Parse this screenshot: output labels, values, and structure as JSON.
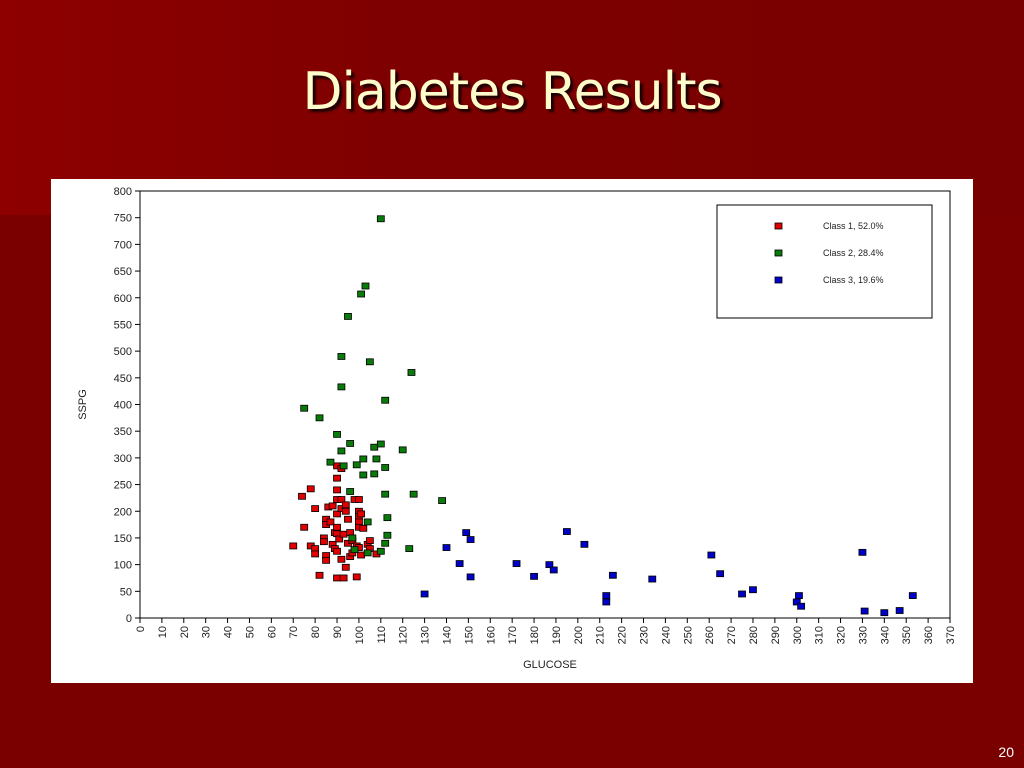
{
  "slide": {
    "title": "Diabetes Results",
    "page_number": "20"
  },
  "chart_data": {
    "type": "scatter",
    "xlabel": "GLUCOSE",
    "ylabel": "SSPG",
    "xlim": [
      0,
      370
    ],
    "ylim": [
      0,
      800
    ],
    "x_ticks": [
      0,
      10,
      20,
      30,
      40,
      50,
      60,
      70,
      80,
      90,
      100,
      110,
      120,
      130,
      140,
      150,
      160,
      170,
      180,
      190,
      200,
      210,
      220,
      230,
      240,
      250,
      260,
      270,
      280,
      290,
      300,
      310,
      320,
      330,
      340,
      350,
      360,
      370
    ],
    "y_ticks": [
      0,
      50,
      100,
      150,
      200,
      250,
      300,
      350,
      400,
      450,
      500,
      550,
      600,
      650,
      700,
      750,
      800
    ],
    "grid": false,
    "legend_position": "top-right",
    "series": [
      {
        "name": "Class 1, 52.0%",
        "color": "#e00000",
        "points": [
          [
            70,
            135
          ],
          [
            74,
            228
          ],
          [
            75,
            170
          ],
          [
            78,
            242
          ],
          [
            78,
            135
          ],
          [
            80,
            205
          ],
          [
            80,
            130
          ],
          [
            80,
            120
          ],
          [
            82,
            80
          ],
          [
            84,
            150
          ],
          [
            84,
            143
          ],
          [
            85,
            185
          ],
          [
            85,
            175
          ],
          [
            85,
            117
          ],
          [
            85,
            108
          ],
          [
            86,
            208
          ],
          [
            87,
            180
          ],
          [
            88,
            210
          ],
          [
            88,
            138
          ],
          [
            89,
            160
          ],
          [
            89,
            130
          ],
          [
            90,
            285
          ],
          [
            90,
            262
          ],
          [
            90,
            240
          ],
          [
            90,
            222
          ],
          [
            90,
            195
          ],
          [
            90,
            170
          ],
          [
            90,
            158
          ],
          [
            90,
            125
          ],
          [
            90,
            75
          ],
          [
            91,
            148
          ],
          [
            92,
            280
          ],
          [
            92,
            222
          ],
          [
            92,
            205
          ],
          [
            92,
            110
          ],
          [
            93,
            157
          ],
          [
            93,
            75
          ],
          [
            94,
            212
          ],
          [
            94,
            200
          ],
          [
            94,
            95
          ],
          [
            95,
            185
          ],
          [
            95,
            140
          ],
          [
            96,
            160
          ],
          [
            96,
            115
          ],
          [
            97,
            145
          ],
          [
            97,
            122
          ],
          [
            98,
            222
          ],
          [
            99,
            135
          ],
          [
            99,
            77
          ],
          [
            100,
            222
          ],
          [
            100,
            200
          ],
          [
            100,
            190
          ],
          [
            100,
            180
          ],
          [
            100,
            170
          ],
          [
            100,
            132
          ],
          [
            101,
            195
          ],
          [
            101,
            118
          ],
          [
            102,
            168
          ],
          [
            104,
            138
          ],
          [
            105,
            145
          ],
          [
            105,
            130
          ],
          [
            108,
            120
          ]
        ]
      },
      {
        "name": "Class 2, 28.4%",
        "color": "#0a7a0a",
        "points": [
          [
            75,
            393
          ],
          [
            82,
            375
          ],
          [
            87,
            292
          ],
          [
            90,
            344
          ],
          [
            92,
            490
          ],
          [
            92,
            433
          ],
          [
            92,
            313
          ],
          [
            93,
            285
          ],
          [
            95,
            565
          ],
          [
            96,
            327
          ],
          [
            96,
            237
          ],
          [
            97,
            150
          ],
          [
            98,
            128
          ],
          [
            99,
            287
          ],
          [
            101,
            607
          ],
          [
            102,
            298
          ],
          [
            102,
            268
          ],
          [
            103,
            622
          ],
          [
            104,
            122
          ],
          [
            104,
            180
          ],
          [
            105,
            480
          ],
          [
            107,
            320
          ],
          [
            107,
            270
          ],
          [
            108,
            298
          ],
          [
            110,
            748
          ],
          [
            110,
            125
          ],
          [
            110,
            326
          ],
          [
            112,
            282
          ],
          [
            112,
            232
          ],
          [
            112,
            408
          ],
          [
            112,
            140
          ],
          [
            113,
            188
          ],
          [
            113,
            155
          ],
          [
            120,
            315
          ],
          [
            123,
            130
          ],
          [
            124,
            460
          ],
          [
            125,
            232
          ],
          [
            138,
            220
          ]
        ]
      },
      {
        "name": "Class 3, 19.6%",
        "color": "#0000c8",
        "points": [
          [
            130,
            45
          ],
          [
            140,
            132
          ],
          [
            146,
            102
          ],
          [
            149,
            160
          ],
          [
            151,
            147
          ],
          [
            151,
            77
          ],
          [
            172,
            102
          ],
          [
            180,
            78
          ],
          [
            187,
            100
          ],
          [
            189,
            90
          ],
          [
            195,
            162
          ],
          [
            203,
            138
          ],
          [
            213,
            42
          ],
          [
            213,
            30
          ],
          [
            216,
            80
          ],
          [
            234,
            73
          ],
          [
            261,
            118
          ],
          [
            265,
            83
          ],
          [
            275,
            45
          ],
          [
            280,
            53
          ],
          [
            300,
            30
          ],
          [
            301,
            42
          ],
          [
            302,
            22
          ],
          [
            330,
            123
          ],
          [
            331,
            13
          ],
          [
            340,
            10
          ],
          [
            347,
            14
          ],
          [
            353,
            42
          ]
        ]
      }
    ]
  }
}
